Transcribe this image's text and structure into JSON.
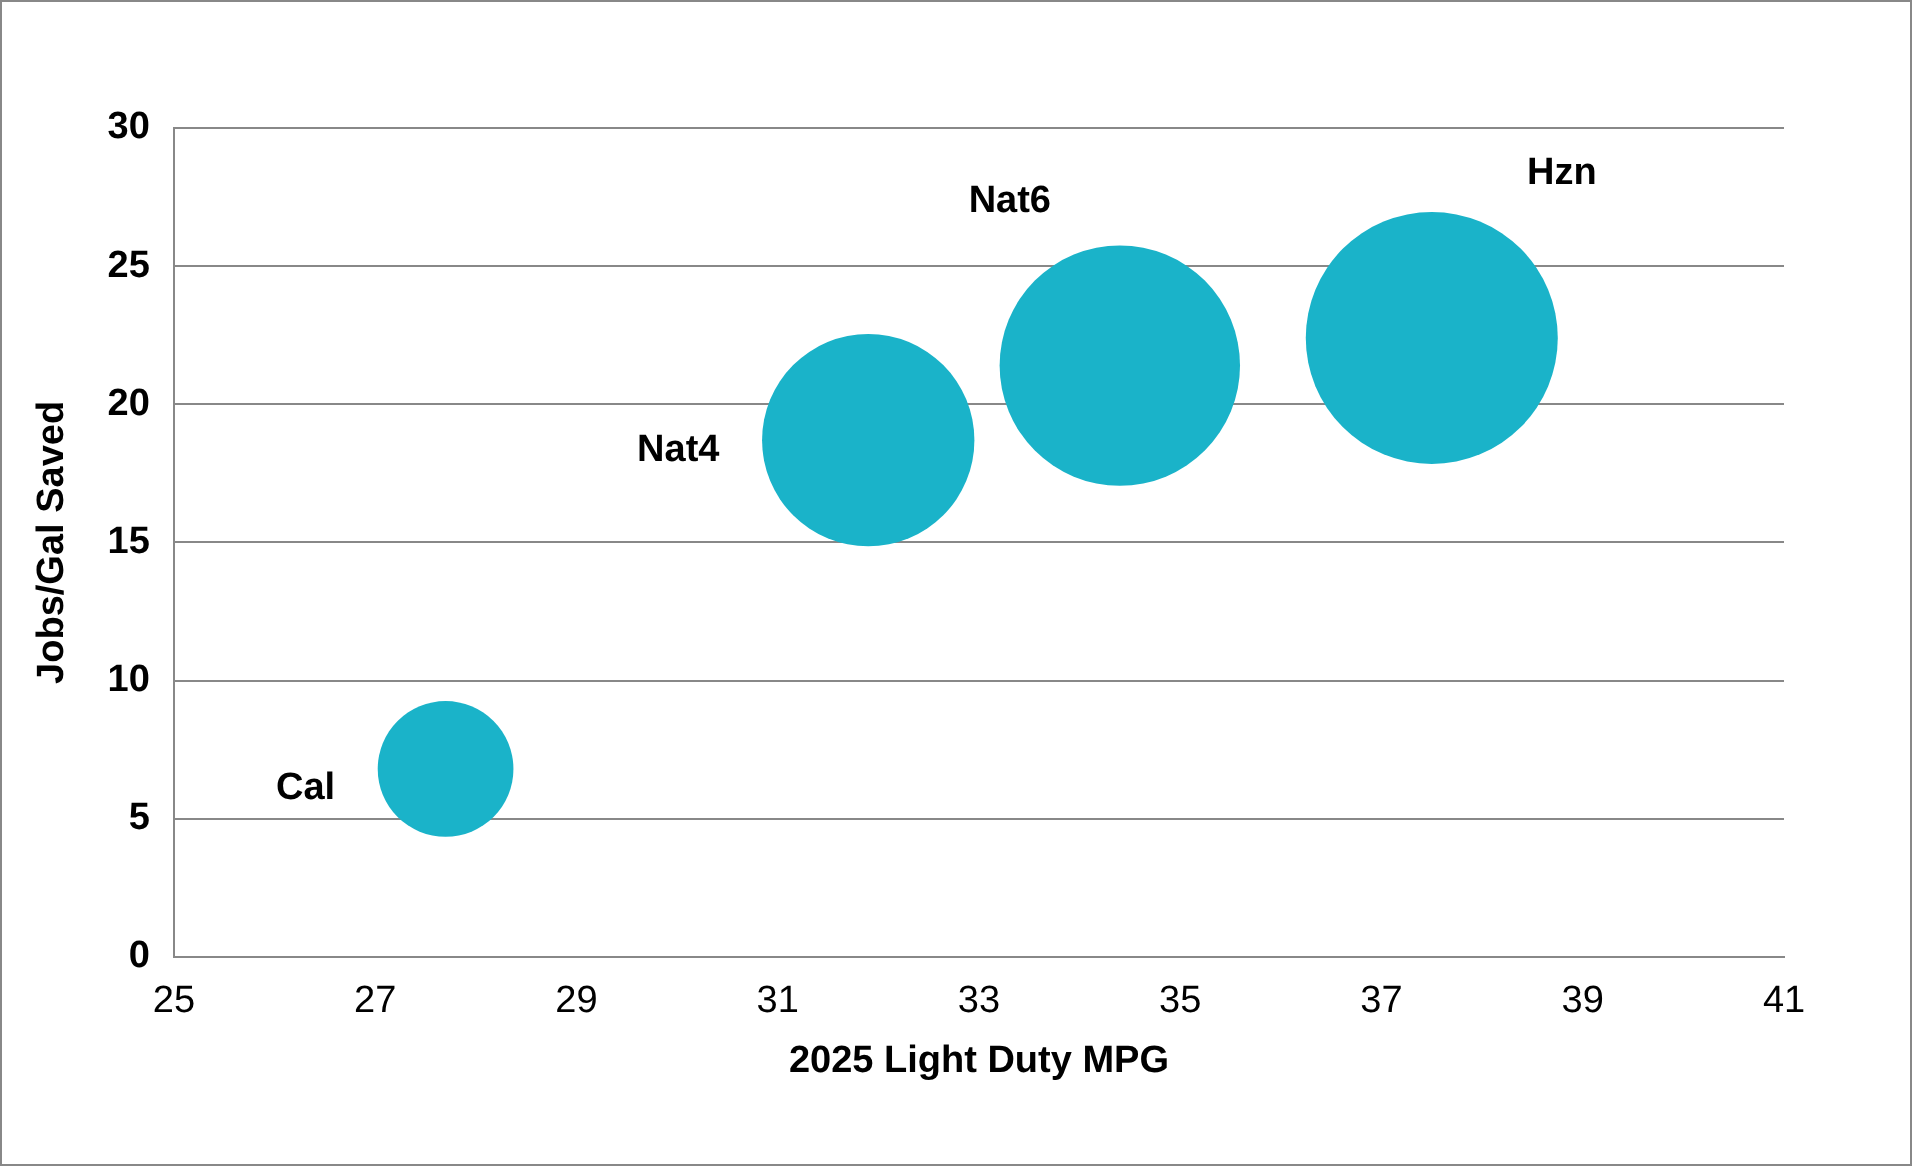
{
  "chart_data": {
    "type": "bubble",
    "xlabel": "2025 Light Duty MPG",
    "ylabel": "Jobs/Gal Saved",
    "series": [
      {
        "name": "Cal",
        "color": "#1ab3c9",
        "x": [
          27.7
        ],
        "values": [
          6.8
        ],
        "sizes": [
          0.29
        ]
      },
      {
        "name": "Nat4",
        "color": "#1ab3c9",
        "x": [
          31.9
        ],
        "values": [
          18.7
        ],
        "sizes": [
          0.71
        ]
      },
      {
        "name": "Nat6",
        "color": "#1ab3c9",
        "x": [
          34.4
        ],
        "values": [
          21.4
        ],
        "sizes": [
          0.91
        ]
      },
      {
        "name": "Hzn",
        "color": "#1ab3c9",
        "x": [
          37.5
        ],
        "values": [
          22.4
        ],
        "sizes": [
          1
        ]
      }
    ],
    "xlim": [
      25,
      41
    ],
    "xticks": [
      25,
      27,
      29,
      31,
      33,
      35,
      37,
      39,
      41
    ],
    "ylim": [
      0,
      30
    ],
    "yticks": [
      0,
      5,
      10,
      15,
      20,
      25,
      30
    ],
    "grid": "y",
    "legend": false
  }
}
